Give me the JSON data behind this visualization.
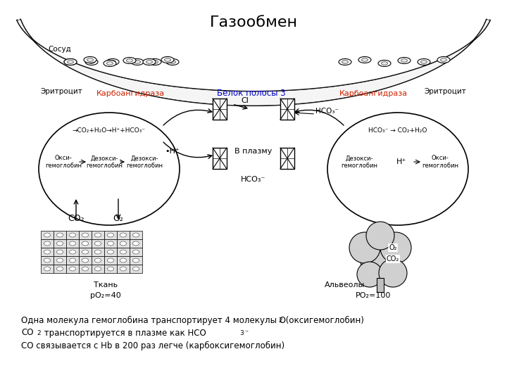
{
  "title": "Газообмен",
  "title_fontsize": 16,
  "background_color": "#ffffff",
  "text_color": "#000000",
  "red_color": "#cc2200",
  "blue_color": "#0000cc",
  "label_sosud": "Сосуд",
  "label_eritrocyt_left": "Эритроцит",
  "label_eritrocyt_right": "Эритроцит",
  "label_carboanh_left": "Карбоангидраза",
  "label_carboanh_right": "Карбоангидраза",
  "label_belok": "Белок полосы 3",
  "label_cl": "Cl",
  "label_hco3_top": "HCO₃⁻",
  "label_vplazmu": "В плазму",
  "label_hco3_bottom": "HCO₃⁻",
  "label_h_plus_left": "•H⁺",
  "label_h_plus_right": "H⁺",
  "label_reaction_left": "→CO₂+H₂O→H⁺+HCO₃⁻",
  "label_reaction_right": "HCO₃⁻ → CO₂+H₂O",
  "label_oxi_left": "Окси-\nгемоглобин",
  "label_deoxi1_left": "Дезокси-\nгемоглобин",
  "label_deoxi2_left": "Дезокси-\nгемоглобин",
  "label_deoxi_right": "Дезокси-\nгемоглобин",
  "label_oxi_right": "Окси-\nгемоглобин",
  "label_co2_left": "CO₂",
  "label_o2_left": "O₂",
  "label_tkan": "Ткань",
  "label_po2_40": "pO₂=40",
  "label_alveoly": "Альвеолы",
  "label_po2_100": "PO₂=100",
  "label_o2_alv": "O₂",
  "label_co2_alv": "CO₂",
  "bottom_text1": "Одна молекула гемоглобина транспортирует 4 молекулы O",
  "bottom_text1b": " (оксигемоглобин)",
  "bottom_text2": "CO",
  "bottom_text2b": " транспортируется в плазме как HCO",
  "bottom_text3": "CO связывается с Hb в 200 раз легче (карбоксигемоглобин)"
}
